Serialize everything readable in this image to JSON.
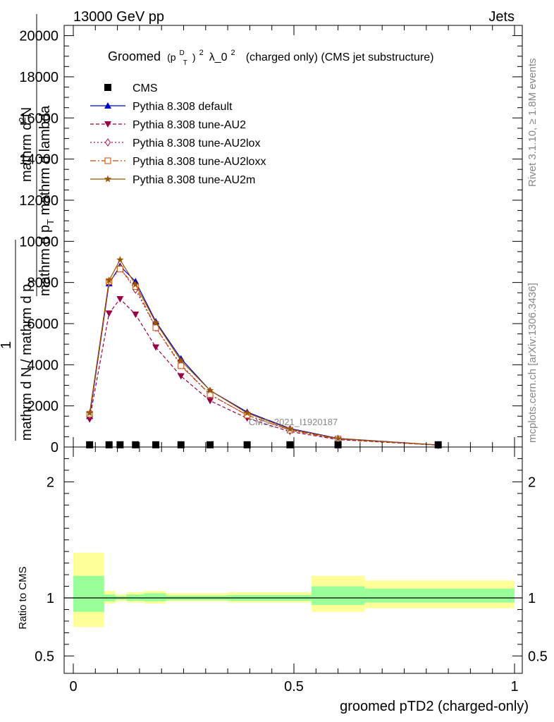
{
  "header": {
    "left": "13000 GeV pp",
    "right": "Jets"
  },
  "side": {
    "rivet": "Rivet 3.1.10, ≥ 1.8M events",
    "mcplots": "mcplots.cern.ch [arXiv:1306.3436]"
  },
  "title": {
    "prefix": "Groomed",
    "p": "(p",
    "sup_d": "D",
    "sub_t": "T",
    "close": ")",
    "sup2": "2",
    "lambda": "λ_0",
    "sup2b": "2",
    "rest": "(charged only) (CMS jet substructure)"
  },
  "ylabel_main": {
    "num_line1": "mathrm d",
    "num_sup": "2",
    "num_line1b": "N",
    "den": "mathrm d p",
    "den_sub": "T",
    "den_b": " mathrm d lambda",
    "front_num": "1",
    "front_den": "mathrm d N / mathrm d p",
    "front_sub": "T"
  },
  "watermark": "CMS_2021_I1920187",
  "ratio_ylabel": "Ratio to CMS",
  "xlabel": "groomed pTD2 (charged-only)",
  "colors": {
    "default": "#0000cc",
    "au2": "#990044",
    "au2lox": "#aa1144",
    "au2loxx": "#cc4400",
    "au2m": "#995500",
    "band_outer": "#ffff99",
    "band_inner": "#99ff99"
  },
  "chart_data": {
    "type": "line",
    "main": {
      "xlim": [
        0,
        1
      ],
      "ylim": [
        0,
        20500
      ],
      "yticks": [
        0,
        2000,
        4000,
        6000,
        8000,
        10000,
        12000,
        14000,
        16000,
        18000,
        20000
      ],
      "ytick_labels": [
        "0",
        "2000",
        "4000",
        "6000",
        "8000",
        "10000",
        "12000",
        "14000",
        "16000",
        "18000",
        "20000"
      ],
      "x": [
        0.037,
        0.081,
        0.106,
        0.141,
        0.187,
        0.244,
        0.31,
        0.394,
        0.491,
        0.6,
        0.827
      ],
      "bin_edges": [
        0.0,
        0.07,
        0.095,
        0.12,
        0.16,
        0.21,
        0.27,
        0.35,
        0.44,
        0.54,
        0.66,
        1.0
      ],
      "cms": [
        40,
        40,
        40,
        40,
        40,
        40,
        40,
        40,
        40,
        40,
        40
      ],
      "series": [
        {
          "name": "Pythia 8.308 default",
          "key": "default",
          "marker": "triangle-up",
          "dash": "",
          "values": [
            1500,
            7950,
            8800,
            8050,
            6100,
            4300,
            2750,
            1700,
            900,
            420,
            100
          ]
        },
        {
          "name": "Pythia 8.308 tune-AU2",
          "key": "au2",
          "marker": "triangle-down",
          "dash": "5,3",
          "values": [
            1350,
            6500,
            7200,
            6450,
            4850,
            3450,
            2250,
            1400,
            750,
            360,
            90
          ]
        },
        {
          "name": "Pythia 8.308 tune-AU2lox",
          "key": "au2lox",
          "marker": "diamond-open",
          "dash": "2,3",
          "values": [
            1550,
            8000,
            8700,
            7650,
            5800,
            4000,
            2550,
            1550,
            820,
            390,
            95
          ]
        },
        {
          "name": "Pythia 8.308 tune-AU2loxx",
          "key": "au2loxx",
          "marker": "square-open",
          "dash": "8,3,2,3",
          "values": [
            1600,
            8050,
            8650,
            7800,
            5800,
            3950,
            2550,
            1550,
            820,
            390,
            95
          ]
        },
        {
          "name": "Pythia 8.308 tune-AU2m",
          "key": "au2m",
          "marker": "star",
          "dash": "",
          "values": [
            1650,
            8100,
            9100,
            7900,
            6050,
            4200,
            2750,
            1650,
            870,
            410,
            100
          ]
        }
      ],
      "cms_label": "CMS"
    },
    "ratio": {
      "ylim": [
        0.35,
        2.3
      ],
      "yticks": [
        0.5,
        1,
        2
      ],
      "ytick_labels": [
        "0.5",
        "1",
        "2"
      ],
      "xticks": [
        0,
        0.5,
        1
      ],
      "xtick_labels": [
        "0",
        "0.5",
        "1"
      ],
      "outer_band": [
        [
          0.0,
          0.07,
          0.75,
          1.39
        ],
        [
          0.07,
          0.095,
          0.95,
          1.06
        ],
        [
          0.095,
          0.12,
          0.97,
          1.03
        ],
        [
          0.12,
          0.16,
          0.96,
          1.05
        ],
        [
          0.16,
          0.21,
          0.95,
          1.06
        ],
        [
          0.21,
          0.27,
          0.97,
          1.04
        ],
        [
          0.27,
          0.35,
          0.97,
          1.04
        ],
        [
          0.35,
          0.44,
          0.96,
          1.05
        ],
        [
          0.44,
          0.54,
          0.96,
          1.05
        ],
        [
          0.54,
          0.66,
          0.88,
          1.19
        ],
        [
          0.66,
          1.0,
          0.91,
          1.15
        ]
      ],
      "inner_band": [
        [
          0.0,
          0.07,
          0.88,
          1.19
        ],
        [
          0.07,
          0.095,
          0.97,
          1.03
        ],
        [
          0.095,
          0.12,
          0.985,
          1.015
        ],
        [
          0.12,
          0.16,
          0.975,
          1.03
        ],
        [
          0.16,
          0.21,
          0.97,
          1.04
        ],
        [
          0.21,
          0.27,
          0.98,
          1.02
        ],
        [
          0.27,
          0.35,
          0.98,
          1.02
        ],
        [
          0.35,
          0.44,
          0.975,
          1.025
        ],
        [
          0.44,
          0.54,
          0.975,
          1.025
        ],
        [
          0.54,
          0.66,
          0.94,
          1.1
        ],
        [
          0.66,
          1.0,
          0.96,
          1.08
        ]
      ]
    }
  }
}
